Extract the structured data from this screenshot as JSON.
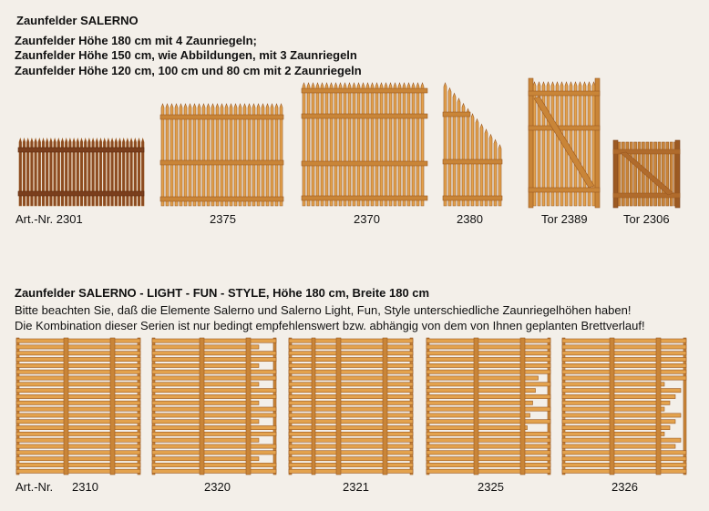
{
  "section1": {
    "title": "Zaunfelder SALERNO",
    "lines": [
      "Zaunfelder Höhe 180 cm mit 4 Zaunriegeln;",
      "Zaunfelder Höhe 150 cm, wie Abbildungen, mit 3 Zaunriegeln",
      "Zaunfelder Höhe 120 cm, 100 cm und 80 cm mit 2 Zaunriegeln"
    ],
    "labels": [
      "Art.-Nr. 2301",
      "2375",
      "2370",
      "2380",
      "Tor 2389",
      "Tor 2306"
    ]
  },
  "section2": {
    "title": "Zaunfelder SALERNO - LIGHT - FUN - STYLE, Höhe 180 cm, Breite 180 cm",
    "lines": [
      "Bitte beachten Sie, daß die Elemente Salerno und Salerno Light, Fun, Style unterschiedliche Zaunriegelhöhen haben!",
      "Die Kombination dieser Serien ist nur bedingt empfehlenswert bzw. abhängig von dem von Ihnen geplanten Brettverlauf!"
    ],
    "label_prefix": "Art.-Nr.",
    "labels": [
      "2310",
      "2320",
      "2321",
      "2325",
      "2326"
    ]
  },
  "colors": {
    "background": "#f3efe9",
    "wood_light": "#e3a24d",
    "wood_mid": "#c98538",
    "wood_dark": "#9c5a22",
    "wood_brown": "#8a4a22"
  }
}
